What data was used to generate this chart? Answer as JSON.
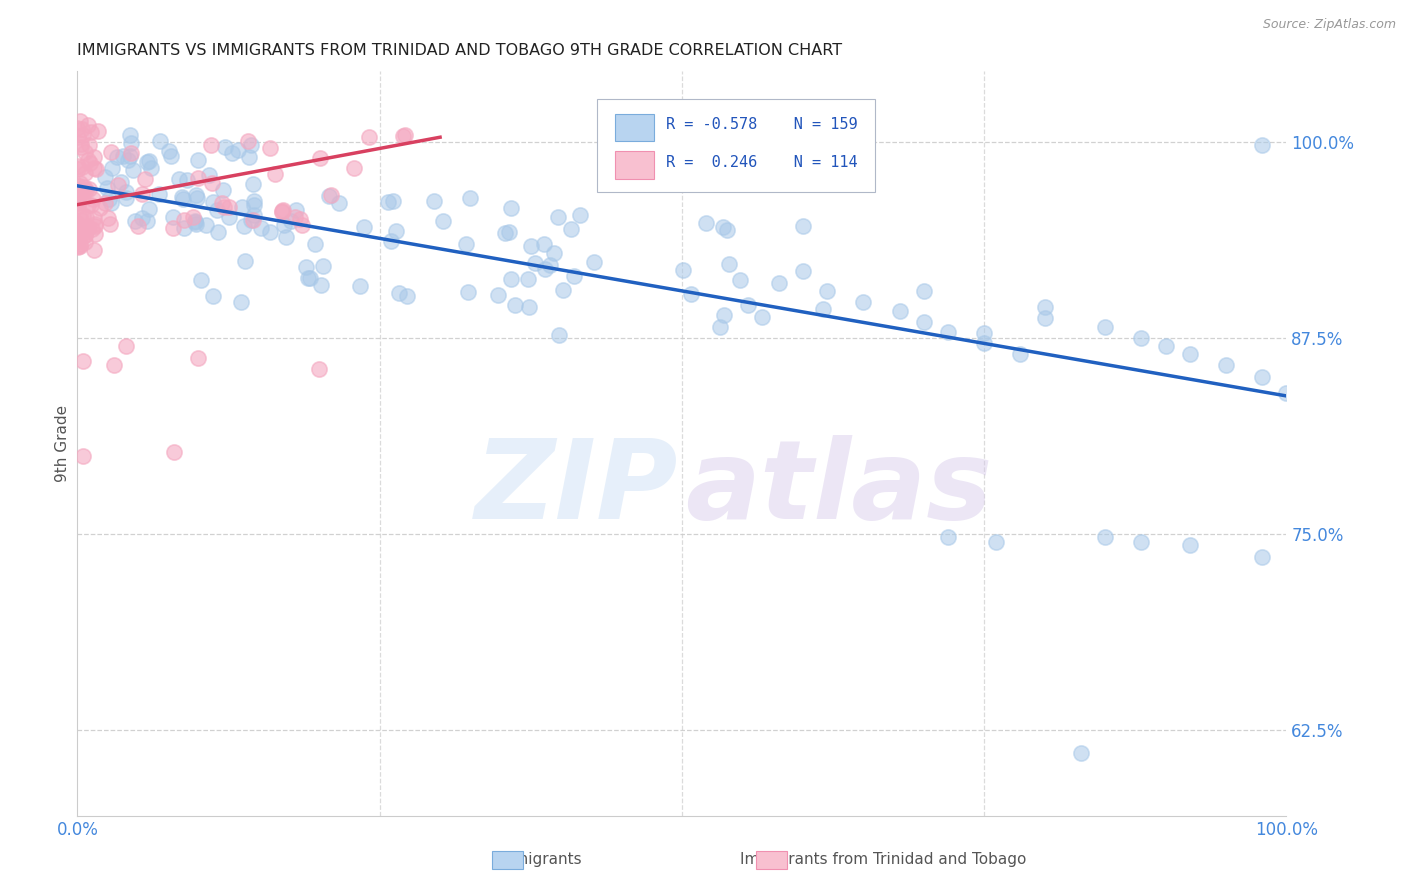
{
  "title": "IMMIGRANTS VS IMMIGRANTS FROM TRINIDAD AND TOBAGO 9TH GRADE CORRELATION CHART",
  "source_text": "Source: ZipAtlas.com",
  "ylabel": "9th Grade",
  "legend_label_blue": "Immigrants",
  "legend_label_pink": "Immigrants from Trinidad and Tobago",
  "r_blue": "-0.578",
  "n_blue": "159",
  "r_pink": "0.246",
  "n_pink": "114",
  "blue_scatter_color": "#a8c8e8",
  "pink_scatter_color": "#f4a8c0",
  "blue_line_color": "#2060c0",
  "pink_line_color": "#d84060",
  "title_color": "#222222",
  "axis_color": "#555555",
  "tick_color": "#4488dd",
  "grid_color": "#cccccc",
  "background_color": "#ffffff",
  "y_ticks": [
    0.625,
    0.75,
    0.875,
    1.0
  ],
  "y_tick_labels": [
    "62.5%",
    "75.0%",
    "87.5%",
    "100.0%"
  ],
  "xlim": [
    0.0,
    1.0
  ],
  "ylim": [
    0.57,
    1.045
  ],
  "blue_trend_x0": 0.0,
  "blue_trend_y0": 0.972,
  "blue_trend_x1": 1.0,
  "blue_trend_y1": 0.838,
  "pink_trend_x0": 0.0,
  "pink_trend_y0": 0.96,
  "pink_trend_x1": 0.3,
  "pink_trend_y1": 1.003
}
